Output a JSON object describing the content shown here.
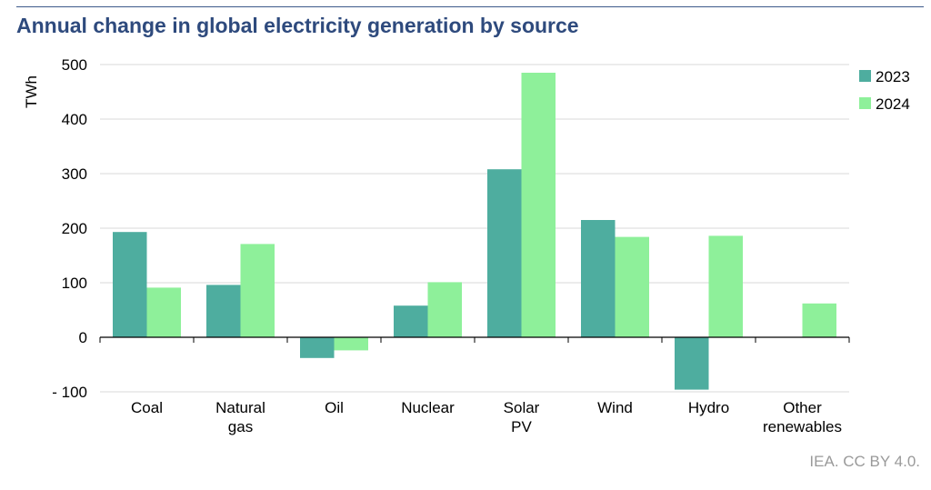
{
  "title": "Annual change in global electricity generation by source",
  "credit": "IEA. CC BY 4.0.",
  "chart_data": {
    "type": "bar",
    "ylabel": "TWh",
    "ylim": [
      -100,
      500
    ],
    "yticks": [
      500,
      400,
      300,
      200,
      100,
      0,
      -100
    ],
    "ytick_labels": [
      "500",
      "400",
      "300",
      "200",
      "100",
      "0",
      "- 100"
    ],
    "grid": true,
    "legend_position": "right",
    "categories": [
      [
        "Coal"
      ],
      [
        "Natural",
        "gas"
      ],
      [
        "Oil"
      ],
      [
        "Nuclear"
      ],
      [
        "Solar",
        "PV"
      ],
      [
        "Wind"
      ],
      [
        "Hydro"
      ],
      [
        "Other",
        "renewables"
      ]
    ],
    "series": [
      {
        "name": "2023",
        "color": "#4ead9f",
        "values": [
          193,
          96,
          -38,
          58,
          308,
          215,
          -96,
          0
        ]
      },
      {
        "name": "2024",
        "color": "#8ef09a",
        "values": [
          91,
          171,
          -24,
          101,
          485,
          184,
          186,
          62
        ]
      }
    ]
  }
}
